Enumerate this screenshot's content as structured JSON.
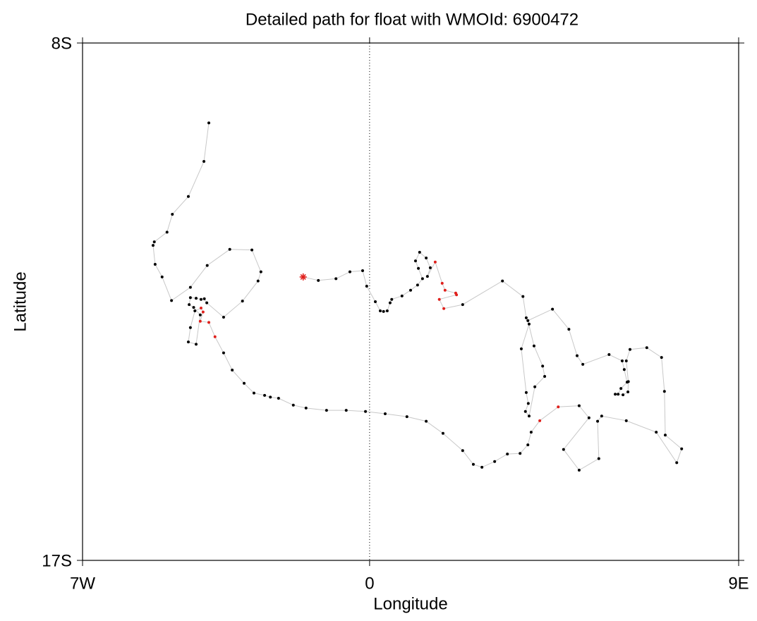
{
  "chart_data": {
    "type": "line",
    "title": "Detailed path for float with WMOId: 6900472",
    "x_label": "Longitude",
    "y_label": "Latitude",
    "xlim": [
      -7,
      9
    ],
    "xticks": [
      {
        "value": -7,
        "label": "7W"
      },
      0,
      {
        "value": 9,
        "label": "9E"
      }
    ],
    "ylim": [
      -17,
      -8
    ],
    "yticks": [
      {
        "value": -17,
        "label": "17S"
      },
      {
        "value": -8,
        "label": "8S"
      }
    ],
    "zero_line": true,
    "line_color": "#c8c8c8",
    "start_marker": "asterisk",
    "x": [
      -1.62,
      -1.25,
      -0.82,
      -0.48,
      -0.17,
      -0.07,
      0.14,
      0.26,
      0.34,
      0.43,
      0.5,
      0.54,
      0.79,
      1.0,
      1.17,
      1.29,
      1.19,
      1.12,
      1.22,
      1.38,
      1.48,
      1.41,
      1.6,
      1.77,
      1.84,
      2.1,
      2.12,
      1.7,
      1.81,
      2.27,
      3.24,
      3.74,
      3.82,
      3.89,
      3.7,
      3.82,
      3.87,
      3.8,
      3.89,
      4.03,
      4.27,
      4.22,
      4.01,
      3.86,
      4.46,
      4.86,
      5.06,
      5.2,
      5.84,
      6.16,
      6.21,
      6.28,
      6.13,
      6.06,
      5.99,
      6.18,
      6.3,
      6.31,
      6.26,
      6.35,
      6.76,
      7.12,
      7.19,
      7.21,
      7.61,
      7.49,
      6.99,
      6.26,
      5.66,
      5.56,
      5.59,
      5.11,
      4.73,
      5.35,
      5.11,
      4.6,
      4.15,
      3.94,
      3.86,
      3.67,
      3.36,
      3.05,
      2.74,
      2.53,
      2.27,
      1.79,
      1.38,
      0.91,
      0.38,
      -0.1,
      -0.57,
      -1.05,
      -1.55,
      -1.86,
      -2.22,
      -2.42,
      -2.56,
      -2.82,
      -3.06,
      -3.35,
      -3.56,
      -3.77,
      -3.92,
      -4.13,
      -4.06,
      -4.11,
      -4.26,
      -4.37,
      -4.42,
      -4.23,
      -4.13,
      -4.29,
      -4.4,
      -4.37,
      -4.23,
      -4.11,
      -4.03,
      -3.97,
      -3.56,
      -3.1,
      -2.72,
      -2.65,
      -2.87,
      -3.41,
      -3.96,
      -4.37,
      -4.83,
      -5.06,
      -5.23,
      -5.28,
      -5.25,
      -4.94,
      -4.81,
      -4.42,
      -4.04,
      -3.92
    ],
    "y": [
      -12.07,
      -12.13,
      -12.1,
      -11.98,
      -11.96,
      -12.23,
      -12.5,
      -12.66,
      -12.67,
      -12.66,
      -12.52,
      -12.46,
      -12.4,
      -12.3,
      -12.21,
      -12.1,
      -11.92,
      -11.79,
      -11.64,
      -11.74,
      -11.91,
      -12.06,
      -11.81,
      -12.18,
      -12.3,
      -12.35,
      -12.38,
      -12.46,
      -12.62,
      -12.55,
      -12.14,
      -12.41,
      -12.78,
      -12.89,
      -13.32,
      -14.08,
      -14.27,
      -14.41,
      -14.49,
      -13.98,
      -13.8,
      -13.62,
      -13.27,
      -12.83,
      -12.63,
      -12.98,
      -13.44,
      -13.59,
      -13.42,
      -13.53,
      -13.68,
      -13.9,
      -14.01,
      -14.11,
      -14.11,
      -14.12,
      -14.07,
      -13.89,
      -13.53,
      -13.33,
      -13.3,
      -13.47,
      -14.06,
      -14.82,
      -15.06,
      -15.3,
      -14.77,
      -14.57,
      -14.49,
      -14.58,
      -15.23,
      -15.43,
      -15.07,
      -14.52,
      -14.31,
      -14.33,
      -14.57,
      -14.77,
      -14.99,
      -15.14,
      -15.15,
      -15.28,
      -15.38,
      -15.33,
      -15.09,
      -14.79,
      -14.58,
      -14.5,
      -14.45,
      -14.41,
      -14.39,
      -14.39,
      -14.35,
      -14.3,
      -14.18,
      -14.16,
      -14.13,
      -14.09,
      -13.92,
      -13.69,
      -13.39,
      -13.11,
      -12.86,
      -12.84,
      -12.68,
      -12.61,
      -12.66,
      -12.95,
      -13.2,
      -13.24,
      -12.73,
      -12.6,
      -12.55,
      -12.43,
      -12.44,
      -12.46,
      -12.45,
      -12.52,
      -12.77,
      -12.49,
      -12.14,
      -11.98,
      -11.6,
      -11.59,
      -11.87,
      -12.25,
      -12.48,
      -12.07,
      -11.85,
      -11.52,
      -11.46,
      -11.29,
      -10.98,
      -10.67,
      -10.06,
      -9.39
    ],
    "marker_colors": [
      "#e0201c",
      "#000",
      "#000",
      "#000",
      "#000",
      "#000",
      "#000",
      "#000",
      "#000",
      "#000",
      "#000",
      "#000",
      "#000",
      "#000",
      "#000",
      "#000",
      "#000",
      "#000",
      "#000",
      "#000",
      "#000",
      "#000",
      "#e0201c",
      "#e0201c",
      "#e0201c",
      "#e0201c",
      "#e0201c",
      "#e0201c",
      "#e0201c",
      "#000",
      "#000",
      "#000",
      "#000",
      "#000",
      "#000",
      "#000",
      "#000",
      "#000",
      "#000",
      "#000",
      "#000",
      "#000",
      "#000",
      "#000",
      "#000",
      "#000",
      "#000",
      "#000",
      "#000",
      "#000",
      "#000",
      "#000",
      "#000",
      "#000",
      "#000",
      "#000",
      "#000",
      "#000",
      "#000",
      "#000",
      "#000",
      "#000",
      "#000",
      "#000",
      "#000",
      "#000",
      "#000",
      "#000",
      "#000",
      "#000",
      "#000",
      "#000",
      "#000",
      "#000",
      "#000",
      "#e0201c",
      "#e0201c",
      "#000",
      "#000",
      "#000",
      "#000",
      "#000",
      "#000",
      "#000",
      "#000",
      "#000",
      "#000",
      "#000",
      "#000",
      "#000",
      "#000",
      "#000",
      "#000",
      "#000",
      "#000",
      "#000",
      "#000",
      "#000",
      "#000",
      "#000",
      "#000",
      "#e0201c",
      "#e0201c",
      "#e0201c",
      "#e0201c",
      "#e0201c",
      "#000",
      "#000",
      "#000",
      "#000",
      "#000",
      "#000",
      "#000",
      "#000",
      "#000",
      "#000",
      "#000",
      "#000",
      "#000",
      "#000",
      "#000",
      "#000",
      "#000",
      "#000",
      "#000",
      "#000",
      "#000",
      "#000",
      "#000",
      "#000",
      "#000",
      "#000",
      "#000",
      "#000",
      "#000",
      "#000"
    ]
  }
}
